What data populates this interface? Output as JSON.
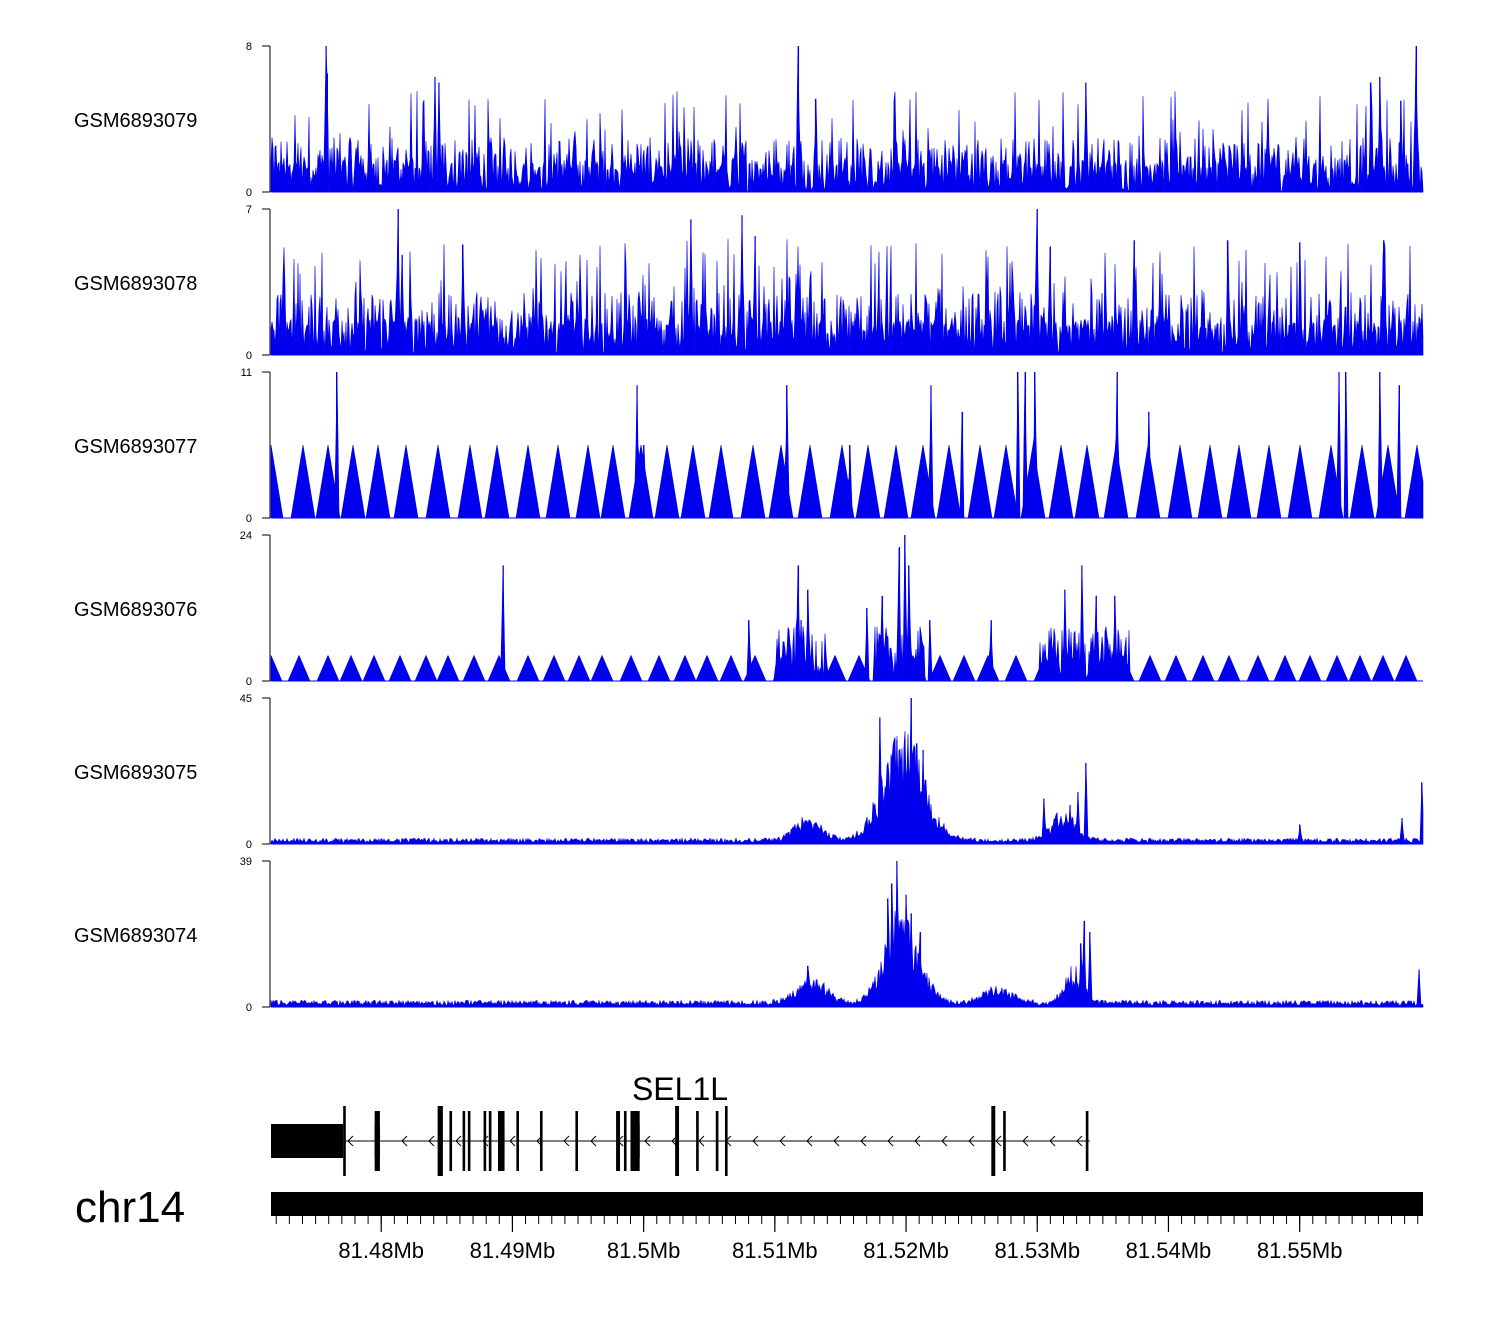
{
  "colors": {
    "signal": "#0000ee",
    "gene": "#000000",
    "text": "#000000"
  },
  "chart_data": {
    "type": "area",
    "chromosome": "chr14",
    "xlim_mb": [
      81.4716,
      81.5594
    ],
    "axis": {
      "tick_labels": [
        "81.48Mb",
        "81.49Mb",
        "81.5Mb",
        "81.51Mb",
        "81.52Mb",
        "81.53Mb",
        "81.54Mb",
        "81.55Mb"
      ],
      "tick_values": [
        81.48,
        81.49,
        81.5,
        81.51,
        81.52,
        81.53,
        81.54,
        81.55
      ],
      "minor_step_mb": 0.001
    },
    "tracks": [
      {
        "name": "GSM6893079",
        "ymax": 8,
        "ymin_label": "0",
        "ymax_label": "8",
        "profile": "uniform",
        "base": 2.0,
        "peaks": [
          [
            81.4758,
            8
          ],
          [
            81.4759,
            6.5
          ],
          [
            81.4841,
            6.3
          ],
          [
            81.4844,
            6
          ],
          [
            81.5118,
            8
          ],
          [
            81.5131,
            5.1
          ],
          [
            81.5337,
            6
          ],
          [
            81.5554,
            6
          ],
          [
            81.5561,
            6.3
          ],
          [
            81.5589,
            8
          ],
          [
            81.5577,
            5
          ]
        ]
      },
      {
        "name": "GSM6893078",
        "ymax": 7,
        "ymin_label": "0",
        "ymax_label": "7",
        "profile": "uniform",
        "base": 2.0,
        "peaks": [
          [
            81.4813,
            7
          ],
          [
            81.4816,
            4.8
          ],
          [
            81.4862,
            5.3
          ],
          [
            81.5036,
            6.5
          ],
          [
            81.5075,
            6.7
          ],
          [
            81.5085,
            5.7
          ],
          [
            81.53,
            7
          ],
          [
            81.531,
            5.2
          ],
          [
            81.5374,
            5.5
          ],
          [
            81.5445,
            5.5
          ],
          [
            81.55,
            5.4
          ],
          [
            81.5564,
            5.5
          ]
        ]
      },
      {
        "name": "GSM6893077",
        "ymax": 11,
        "ymin_label": "0",
        "ymax_label": "11",
        "profile": "sparse",
        "base": 0,
        "peaks": [
          [
            81.4766,
            11
          ],
          [
            81.4995,
            10
          ],
          [
            81.5109,
            10
          ],
          [
            81.5219,
            10
          ],
          [
            81.5285,
            11
          ],
          [
            81.5291,
            11
          ],
          [
            81.5298,
            11
          ],
          [
            81.5361,
            11
          ],
          [
            81.5385,
            8
          ],
          [
            81.553,
            11
          ],
          [
            81.5535,
            11
          ],
          [
            81.5561,
            11
          ],
          [
            81.5576,
            10
          ],
          [
            81.5243,
            8
          ],
          [
            81.5157,
            5.5
          ],
          [
            81.5,
            5.5
          ]
        ]
      },
      {
        "name": "GSM6893076",
        "ymax": 24,
        "ymin_label": "0",
        "ymax_label": "24",
        "profile": "sparse-dense",
        "base": 0,
        "peaks": [
          [
            81.4893,
            19
          ],
          [
            81.5118,
            19
          ],
          [
            81.5125,
            15
          ],
          [
            81.5182,
            14
          ],
          [
            81.5195,
            22
          ],
          [
            81.5199,
            24
          ],
          [
            81.5202,
            19
          ],
          [
            81.5321,
            15
          ],
          [
            81.5334,
            19
          ],
          [
            81.5345,
            14
          ],
          [
            81.5359,
            14
          ],
          [
            81.5265,
            10
          ],
          [
            81.5218,
            10
          ],
          [
            81.512,
            10
          ],
          [
            81.517,
            12
          ],
          [
            81.508,
            10
          ]
        ]
      },
      {
        "name": "GSM6893075",
        "ymax": 45,
        "ymin_label": "0",
        "ymax_label": "45",
        "profile": "peaked",
        "base": 1.5,
        "centers": [
          [
            81.5198,
            28,
            2.2
          ],
          [
            81.532,
            8,
            1.3
          ],
          [
            81.5125,
            6,
            1.5
          ]
        ],
        "peaks": [
          [
            81.518,
            39
          ],
          [
            81.5193,
            32
          ],
          [
            81.5204,
            45
          ],
          [
            81.5208,
            31
          ],
          [
            81.5213,
            29
          ],
          [
            81.5337,
            25
          ],
          [
            81.5331,
            16
          ],
          [
            81.5325,
            12
          ],
          [
            81.5305,
            14
          ],
          [
            81.55,
            6
          ],
          [
            81.5578,
            8
          ],
          [
            81.5593,
            19
          ]
        ]
      },
      {
        "name": "GSM6893074",
        "ymax": 39,
        "ymin_label": "0",
        "ymax_label": "39",
        "profile": "peaked",
        "base": 1.5,
        "centers": [
          [
            81.5197,
            22,
            1.8
          ],
          [
            81.5328,
            8,
            1.0
          ],
          [
            81.5128,
            6,
            1.6
          ],
          [
            81.527,
            4,
            1.5
          ]
        ],
        "peaks": [
          [
            81.5193,
            39
          ],
          [
            81.5189,
            33
          ],
          [
            81.5186,
            29
          ],
          [
            81.52,
            30
          ],
          [
            81.5204,
            25
          ],
          [
            81.5211,
            20
          ],
          [
            81.5336,
            23
          ],
          [
            81.534,
            20
          ],
          [
            81.5333,
            17
          ],
          [
            81.5591,
            10
          ],
          [
            81.5125,
            11
          ]
        ]
      }
    ],
    "gene": {
      "label": "SEL1L",
      "strand": "-",
      "start_mb": 81.4716,
      "end_mb": 81.534,
      "utr_blocks": [
        [
          81.4716,
          81.4771
        ]
      ],
      "exons": [
        [
          81.4771,
          81.4773
        ],
        [
          81.4795,
          81.4799
        ],
        [
          81.4843,
          81.4847
        ],
        [
          81.4852,
          81.4854
        ],
        [
          81.4862,
          81.4864
        ],
        [
          81.4866,
          81.4868
        ],
        [
          81.4878,
          81.488
        ],
        [
          81.4882,
          81.4884
        ],
        [
          81.4889,
          81.4894
        ],
        [
          81.4903,
          81.4905
        ],
        [
          81.4921,
          81.4923
        ],
        [
          81.4948,
          81.495
        ],
        [
          81.4979,
          81.4982
        ],
        [
          81.4985,
          81.4987
        ],
        [
          81.499,
          81.4997
        ],
        [
          81.5024,
          81.5027
        ],
        [
          81.504,
          81.5042
        ],
        [
          81.5055,
          81.5057
        ],
        [
          81.5062,
          81.5064
        ],
        [
          81.5265,
          81.5268
        ],
        [
          81.5274,
          81.5276
        ],
        [
          81.5337,
          81.5339
        ]
      ],
      "tall_exons": [
        [
          81.4771,
          81.4773
        ],
        [
          81.4843,
          81.4847
        ],
        [
          81.5024,
          81.5027
        ],
        [
          81.5062,
          81.5064
        ],
        [
          81.5265,
          81.5268
        ]
      ]
    }
  }
}
